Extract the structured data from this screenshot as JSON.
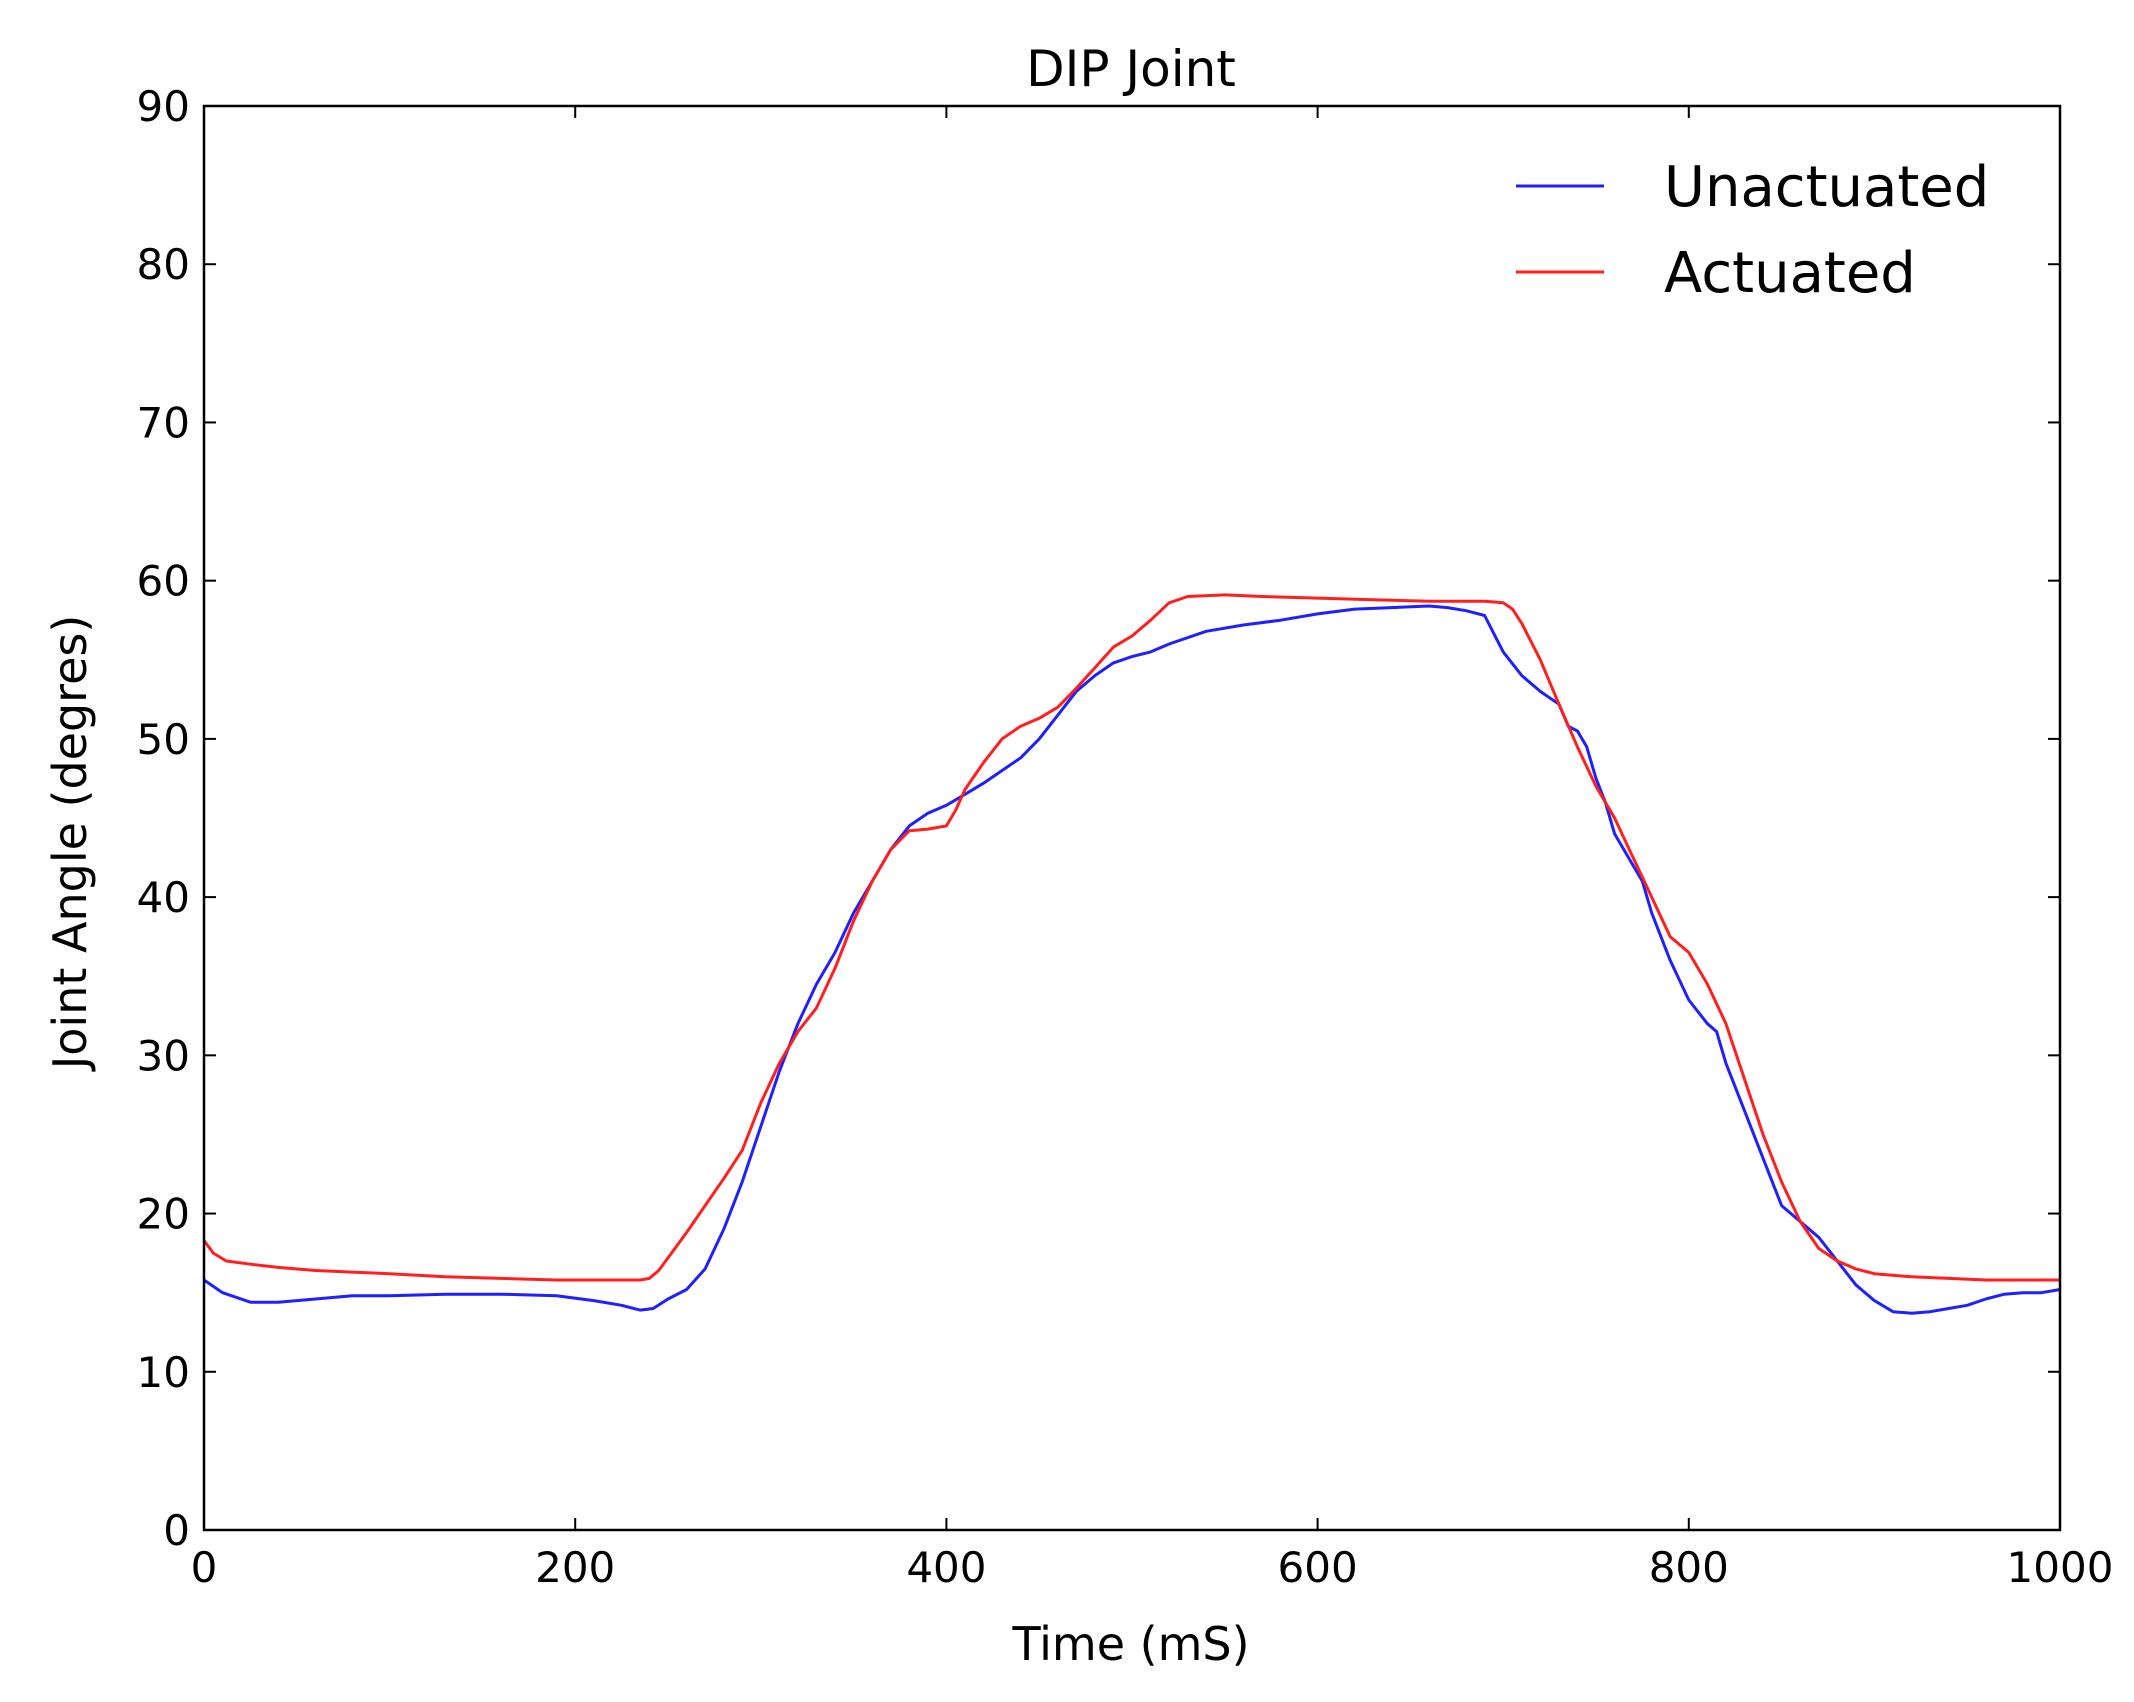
{
  "chart_data": {
    "type": "line",
    "title": "DIP Joint",
    "xlabel": "Time (mS)",
    "ylabel": "Joint Angle (degres)",
    "xlim": [
      0,
      1000
    ],
    "ylim": [
      0,
      90
    ],
    "xticks": [
      0,
      200,
      400,
      600,
      800,
      1000
    ],
    "yticks": [
      0,
      10,
      20,
      30,
      40,
      50,
      60,
      70,
      80,
      90
    ],
    "grid": false,
    "legend_position": "top-right",
    "series": [
      {
        "name": "Unactuated",
        "color": "#1f1fff",
        "x": [
          0,
          10,
          25,
          40,
          60,
          80,
          100,
          130,
          160,
          190,
          210,
          225,
          235,
          242,
          250,
          260,
          270,
          280,
          290,
          300,
          310,
          320,
          330,
          340,
          350,
          360,
          370,
          380,
          390,
          400,
          410,
          420,
          430,
          440,
          450,
          460,
          470,
          480,
          490,
          500,
          510,
          520,
          540,
          560,
          580,
          600,
          620,
          640,
          660,
          670,
          680,
          690,
          700,
          710,
          720,
          725,
          730,
          735,
          740,
          745,
          750,
          755,
          760,
          770,
          775,
          780,
          790,
          800,
          810,
          815,
          820,
          830,
          840,
          850,
          860,
          870,
          880,
          890,
          900,
          910,
          920,
          930,
          940,
          950,
          960,
          970,
          980,
          990,
          1000
        ],
        "y": [
          15.8,
          15.0,
          14.4,
          14.4,
          14.6,
          14.8,
          14.8,
          14.9,
          14.9,
          14.8,
          14.5,
          14.2,
          13.9,
          14.0,
          14.6,
          15.2,
          16.5,
          19.0,
          22.0,
          25.5,
          29.0,
          32.0,
          34.5,
          36.5,
          39.0,
          41.0,
          43.0,
          44.5,
          45.3,
          45.8,
          46.5,
          47.2,
          48.0,
          48.8,
          50.0,
          51.5,
          53.0,
          54.0,
          54.8,
          55.2,
          55.5,
          56.0,
          56.8,
          57.2,
          57.5,
          57.9,
          58.2,
          58.3,
          58.4,
          58.3,
          58.1,
          57.8,
          55.5,
          54.0,
          53.0,
          52.6,
          52.2,
          50.8,
          50.5,
          49.5,
          47.5,
          46.0,
          44.0,
          42.0,
          41.0,
          39.0,
          36.0,
          33.5,
          32.0,
          31.5,
          29.5,
          26.5,
          23.5,
          20.5,
          19.5,
          18.5,
          17.0,
          15.5,
          14.5,
          13.8,
          13.7,
          13.8,
          14.0,
          14.2,
          14.6,
          14.9,
          15.0,
          15.0,
          15.2
        ]
      },
      {
        "name": "Actuated",
        "color": "#ff1f1f",
        "x": [
          0,
          5,
          12,
          25,
          40,
          60,
          80,
          100,
          130,
          160,
          190,
          210,
          225,
          235,
          240,
          245,
          250,
          260,
          270,
          280,
          290,
          300,
          310,
          320,
          330,
          340,
          350,
          360,
          370,
          380,
          390,
          400,
          405,
          410,
          420,
          430,
          440,
          450,
          460,
          470,
          480,
          490,
          500,
          510,
          520,
          530,
          550,
          570,
          600,
          630,
          660,
          690,
          700,
          705,
          710,
          720,
          730,
          740,
          750,
          760,
          770,
          780,
          790,
          800,
          810,
          820,
          830,
          840,
          850,
          860,
          870,
          880,
          890,
          900,
          920,
          940,
          960,
          980,
          1000
        ],
        "y": [
          18.3,
          17.5,
          17.0,
          16.8,
          16.6,
          16.4,
          16.3,
          16.2,
          16.0,
          15.9,
          15.8,
          15.8,
          15.8,
          15.8,
          15.9,
          16.4,
          17.2,
          18.8,
          20.5,
          22.2,
          24.0,
          27.0,
          29.5,
          31.5,
          33.0,
          35.5,
          38.5,
          41.0,
          43.0,
          44.2,
          44.3,
          44.5,
          45.5,
          46.8,
          48.5,
          50.0,
          50.8,
          51.3,
          52.0,
          53.2,
          54.5,
          55.8,
          56.5,
          57.5,
          58.6,
          59.0,
          59.1,
          59.0,
          58.9,
          58.8,
          58.7,
          58.7,
          58.6,
          58.2,
          57.3,
          55.0,
          52.2,
          49.5,
          47.0,
          45.0,
          42.5,
          40.0,
          37.5,
          36.5,
          34.5,
          32.0,
          28.5,
          25.0,
          22.0,
          19.5,
          17.8,
          17.0,
          16.5,
          16.2,
          16.0,
          15.9,
          15.8,
          15.8,
          15.8
        ]
      }
    ]
  }
}
